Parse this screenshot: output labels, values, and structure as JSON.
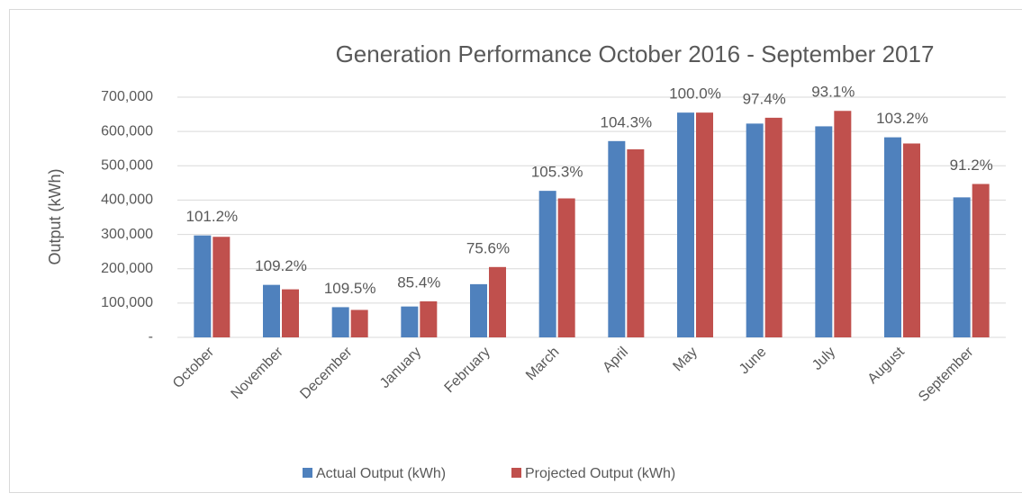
{
  "chart_data": {
    "type": "bar",
    "title": "Generation Performance October 2016 - September 2017",
    "y_label": "Output (kWh)",
    "categories": [
      "October",
      "November",
      "December",
      "January",
      "February",
      "March",
      "April",
      "May",
      "June",
      "July",
      "August",
      "September"
    ],
    "series": [
      {
        "name": "Actual Output (kWh)",
        "color": "#4f81bd",
        "values": [
          297000,
          153000,
          88000,
          90000,
          155000,
          427000,
          572000,
          655000,
          623000,
          615000,
          583000,
          408000
        ]
      },
      {
        "name": "Projected Output (kWh)",
        "color": "#c0504d",
        "values": [
          293000,
          140000,
          80000,
          105000,
          205000,
          405000,
          548000,
          655000,
          640000,
          660000,
          565000,
          447000
        ]
      }
    ],
    "annotations": [
      "101.2%",
      "109.2%",
      "109.5%",
      "85.4%",
      "75.6%",
      "105.3%",
      "104.3%",
      "100.0%",
      "97.4%",
      "93.1%",
      "103.2%",
      "91.2%"
    ],
    "ylim": [
      0,
      700000
    ],
    "yticks": [
      {
        "value": 0,
        "label": "-"
      },
      {
        "value": 100000,
        "label": "100,000"
      },
      {
        "value": 200000,
        "label": "200,000"
      },
      {
        "value": 300000,
        "label": "300,000"
      },
      {
        "value": 400000,
        "label": "400,000"
      },
      {
        "value": 500000,
        "label": "500,000"
      },
      {
        "value": 600000,
        "label": "600,000"
      },
      {
        "value": 700000,
        "label": "700,000"
      }
    ],
    "grid": true,
    "legend": "bottom"
  }
}
